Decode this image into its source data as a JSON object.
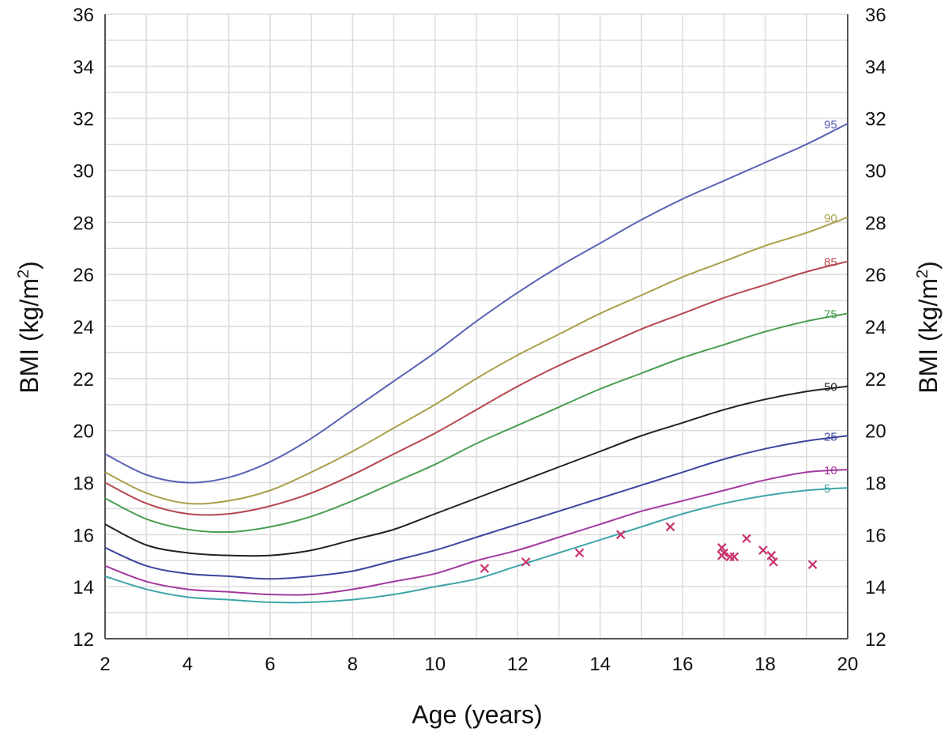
{
  "chart_data": {
    "type": "line",
    "xlabel": "Age (years)",
    "ylabel": "BMI (kg/m",
    "ylabel_sup": "2",
    "ylabel_end": ")",
    "xlim": [
      2,
      20
    ],
    "ylim": [
      12,
      36
    ],
    "x_ticks": [
      2,
      4,
      6,
      8,
      10,
      12,
      14,
      16,
      18,
      20
    ],
    "y_ticks": [
      12,
      14,
      16,
      18,
      20,
      22,
      24,
      26,
      28,
      30,
      32,
      34,
      36
    ],
    "grid": true,
    "minor_grid_x_step": 1,
    "minor_grid_y_step": 1,
    "right_axis_mirror": true,
    "series": [
      {
        "name": "95",
        "color": "#5b63b5",
        "x": [
          2,
          3,
          4,
          5,
          6,
          7,
          8,
          9,
          10,
          11,
          12,
          13,
          14,
          15,
          16,
          17,
          18,
          19,
          20
        ],
        "y": [
          19.1,
          18.3,
          18.0,
          18.2,
          18.8,
          19.7,
          20.8,
          21.9,
          23.0,
          24.2,
          25.3,
          26.3,
          27.2,
          28.1,
          28.9,
          29.6,
          30.3,
          31.0,
          31.8
        ]
      },
      {
        "name": "90",
        "color": "#a9a04b",
        "x": [
          2,
          3,
          4,
          5,
          6,
          7,
          8,
          9,
          10,
          11,
          12,
          13,
          14,
          15,
          16,
          17,
          18,
          19,
          20
        ],
        "y": [
          18.4,
          17.6,
          17.2,
          17.3,
          17.7,
          18.4,
          19.2,
          20.1,
          21.0,
          22.0,
          22.9,
          23.7,
          24.5,
          25.2,
          25.9,
          26.5,
          27.1,
          27.6,
          28.2
        ]
      },
      {
        "name": "85",
        "color": "#b5474f",
        "x": [
          2,
          3,
          4,
          5,
          6,
          7,
          8,
          9,
          10,
          11,
          12,
          13,
          14,
          15,
          16,
          17,
          18,
          19,
          20
        ],
        "y": [
          18.0,
          17.2,
          16.8,
          16.8,
          17.1,
          17.6,
          18.3,
          19.1,
          19.9,
          20.8,
          21.7,
          22.5,
          23.2,
          23.9,
          24.5,
          25.1,
          25.6,
          26.1,
          26.5
        ]
      },
      {
        "name": "75",
        "color": "#4a9e52",
        "x": [
          2,
          3,
          4,
          5,
          6,
          7,
          8,
          9,
          10,
          11,
          12,
          13,
          14,
          15,
          16,
          17,
          18,
          19,
          20
        ],
        "y": [
          17.4,
          16.6,
          16.2,
          16.1,
          16.3,
          16.7,
          17.3,
          18.0,
          18.7,
          19.5,
          20.2,
          20.9,
          21.6,
          22.2,
          22.8,
          23.3,
          23.8,
          24.2,
          24.5
        ]
      },
      {
        "name": "50",
        "color": "#222222",
        "x": [
          2,
          3,
          4,
          5,
          6,
          7,
          8,
          9,
          10,
          11,
          12,
          13,
          14,
          15,
          16,
          17,
          18,
          19,
          20
        ],
        "y": [
          16.4,
          15.6,
          15.3,
          15.2,
          15.2,
          15.4,
          15.8,
          16.2,
          16.8,
          17.4,
          18.0,
          18.6,
          19.2,
          19.8,
          20.3,
          20.8,
          21.2,
          21.5,
          21.7
        ]
      },
      {
        "name": "25",
        "color": "#3d459e",
        "x": [
          2,
          3,
          4,
          5,
          6,
          7,
          8,
          9,
          10,
          11,
          12,
          13,
          14,
          15,
          16,
          17,
          18,
          19,
          20
        ],
        "y": [
          15.5,
          14.8,
          14.5,
          14.4,
          14.3,
          14.4,
          14.6,
          15.0,
          15.4,
          15.9,
          16.4,
          16.9,
          17.4,
          17.9,
          18.4,
          18.9,
          19.3,
          19.6,
          19.8
        ]
      },
      {
        "name": "10",
        "color": "#a23a9e",
        "x": [
          2,
          3,
          4,
          5,
          6,
          7,
          8,
          9,
          10,
          11,
          12,
          13,
          14,
          15,
          16,
          17,
          18,
          19,
          20
        ],
        "y": [
          14.8,
          14.2,
          13.9,
          13.8,
          13.7,
          13.7,
          13.9,
          14.2,
          14.5,
          15.0,
          15.4,
          15.9,
          16.4,
          16.9,
          17.3,
          17.7,
          18.1,
          18.4,
          18.5
        ]
      },
      {
        "name": "5",
        "color": "#3fa5a8",
        "x": [
          2,
          3,
          4,
          5,
          6,
          7,
          8,
          9,
          10,
          11,
          12,
          13,
          14,
          15,
          16,
          17,
          18,
          19,
          20
        ],
        "y": [
          14.4,
          13.9,
          13.6,
          13.5,
          13.4,
          13.4,
          13.5,
          13.7,
          14.0,
          14.3,
          14.8,
          15.3,
          15.8,
          16.3,
          16.8,
          17.2,
          17.5,
          17.7,
          17.8
        ]
      }
    ],
    "scatter": {
      "color": "#c8336e",
      "marker": "x",
      "points": [
        [
          11.2,
          14.7
        ],
        [
          12.2,
          14.95
        ],
        [
          13.5,
          15.3
        ],
        [
          14.5,
          16.0
        ],
        [
          15.7,
          16.3
        ],
        [
          16.95,
          15.5
        ],
        [
          17.0,
          15.3
        ],
        [
          16.95,
          15.2
        ],
        [
          17.15,
          15.15
        ],
        [
          17.25,
          15.15
        ],
        [
          17.55,
          15.85
        ],
        [
          17.95,
          15.4
        ],
        [
          18.15,
          15.2
        ],
        [
          18.2,
          14.95
        ],
        [
          19.15,
          14.85
        ]
      ]
    }
  }
}
